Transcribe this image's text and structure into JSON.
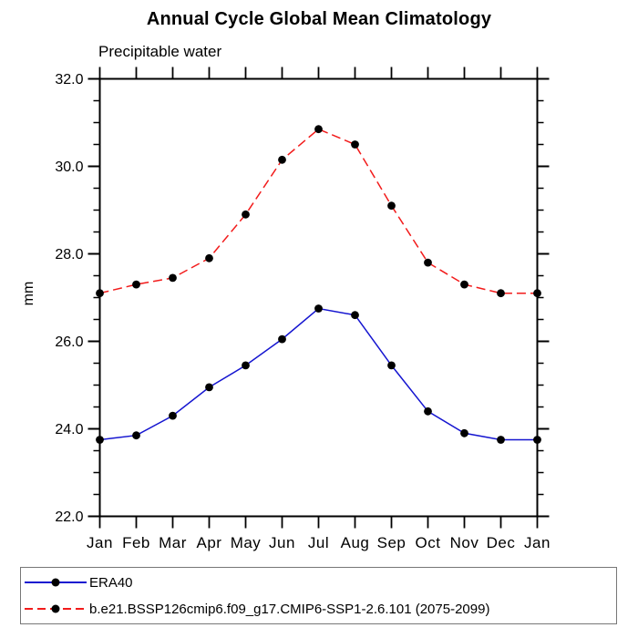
{
  "header": {
    "title": "Annual Cycle Global Mean Climatology",
    "subtitle": "Precipitable water"
  },
  "chart_data": {
    "type": "line",
    "title": "Annual Cycle Global Mean Climatology",
    "subtitle": "Precipitable water",
    "xlabel": "",
    "ylabel": "mm",
    "ylim": [
      22.0,
      32.0
    ],
    "ytick_major_step": 2.0,
    "ytick_minor_step": 0.5,
    "ytick_labels": [
      "22.0",
      "24.0",
      "26.0",
      "28.0",
      "30.0",
      "32.0"
    ],
    "categories": [
      "Jan",
      "Feb",
      "Mar",
      "Apr",
      "May",
      "Jun",
      "Jul",
      "Aug",
      "Sep",
      "Oct",
      "Nov",
      "Dec",
      "Jan"
    ],
    "grid": false,
    "frame": "box-with-outward-ticks",
    "legend_position": "bottom-left-box",
    "axis_color": "#000000",
    "marker": "filled-circle",
    "marker_color": "#000000",
    "series": [
      {
        "name": "ERA40",
        "color": "#1515d0",
        "style": "solid",
        "values": [
          23.75,
          23.85,
          24.3,
          24.95,
          25.45,
          26.05,
          26.75,
          26.6,
          25.45,
          24.4,
          23.9,
          23.75,
          23.75
        ]
      },
      {
        "name": "b.e21.BSSP126cmip6.f09_g17.CMIP6-SSP1-2.6.101 (2075-2099)",
        "color": "#f21b1b",
        "style": "dashed",
        "values": [
          27.1,
          27.3,
          27.45,
          27.9,
          28.9,
          30.15,
          30.85,
          30.5,
          29.1,
          27.8,
          27.3,
          27.1,
          27.1
        ]
      }
    ]
  }
}
